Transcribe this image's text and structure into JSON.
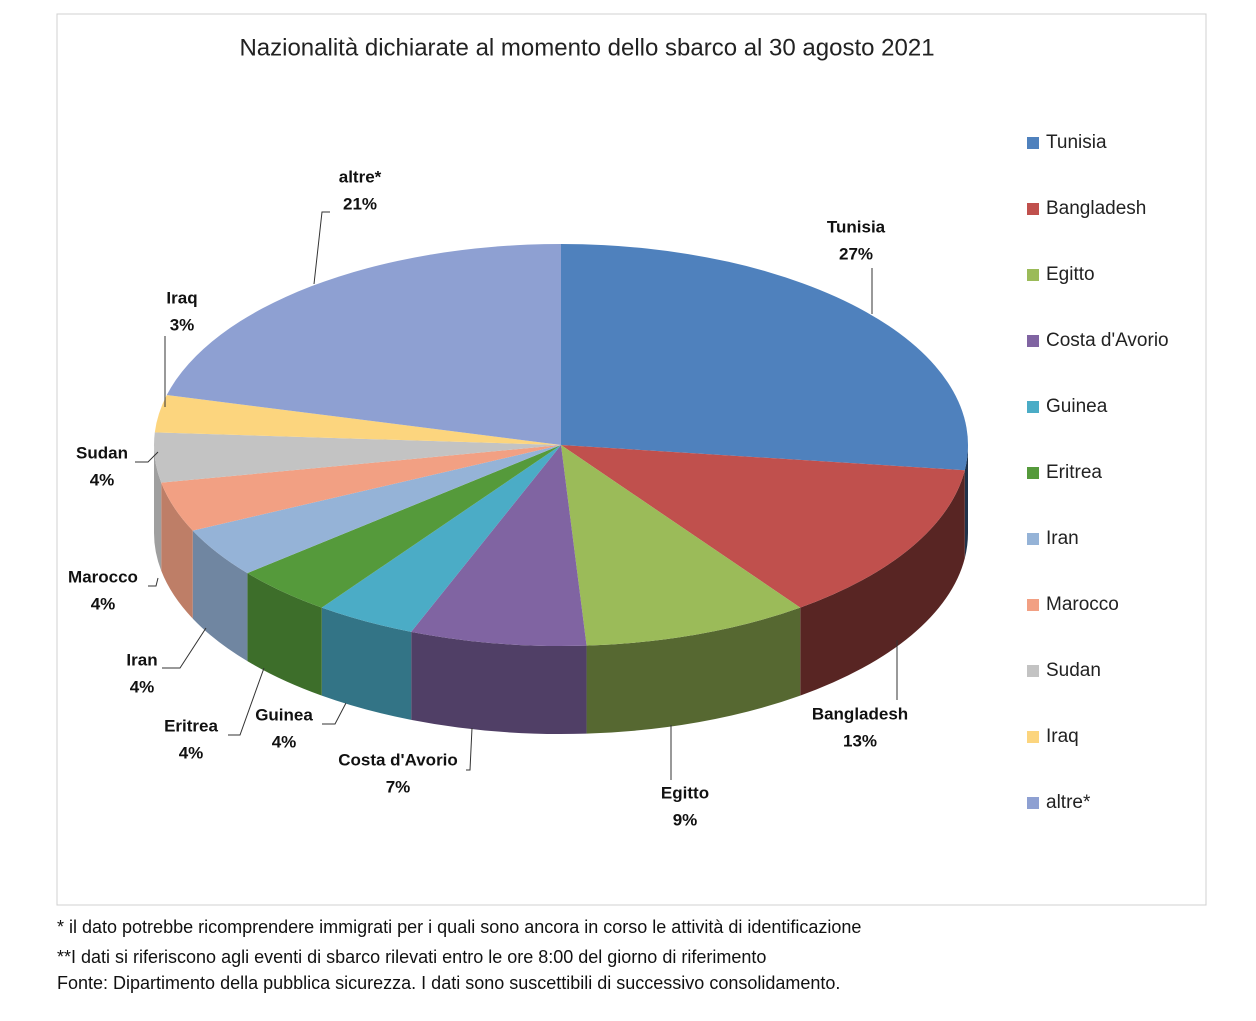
{
  "chart_data": {
    "type": "pie3d",
    "title": "Nazionalità dichiarate al momento dello sbarco al 30 agosto 2021",
    "categories": [
      "Tunisia",
      "Bangladesh",
      "Egitto",
      "Costa d'Avorio",
      "Guinea",
      "Eritrea",
      "Iran",
      "Marocco",
      "Sudan",
      "Iraq",
      "altre*"
    ],
    "values": [
      27,
      13,
      9,
      7,
      4,
      4,
      4,
      4,
      4,
      3,
      21
    ],
    "value_labels": [
      "27%",
      "13%",
      "9%",
      "7%",
      "4%",
      "4%",
      "4%",
      "4%",
      "4%",
      "3%",
      "21%"
    ],
    "colors": [
      "#4f81bd",
      "#c0504d",
      "#9bbb59",
      "#8064a2",
      "#4bacc6",
      "#559a3b",
      "#95b3d7",
      "#f2a083",
      "#c3c3c3",
      "#fcd57e",
      "#8ea0d2"
    ],
    "legend": "right"
  },
  "footnotes": [
    "* il dato potrebbe ricomprendere immigrati per i quali sono ancora in corso le attività di identificazione",
    "**I dati si riferiscono agli eventi di sbarco rilevati entro le ore 8:00 del giorno di riferimento",
    "Fonte: Dipartimento della pubblica sicurezza. I dati sono suscettibili di successivo consolidamento."
  ]
}
